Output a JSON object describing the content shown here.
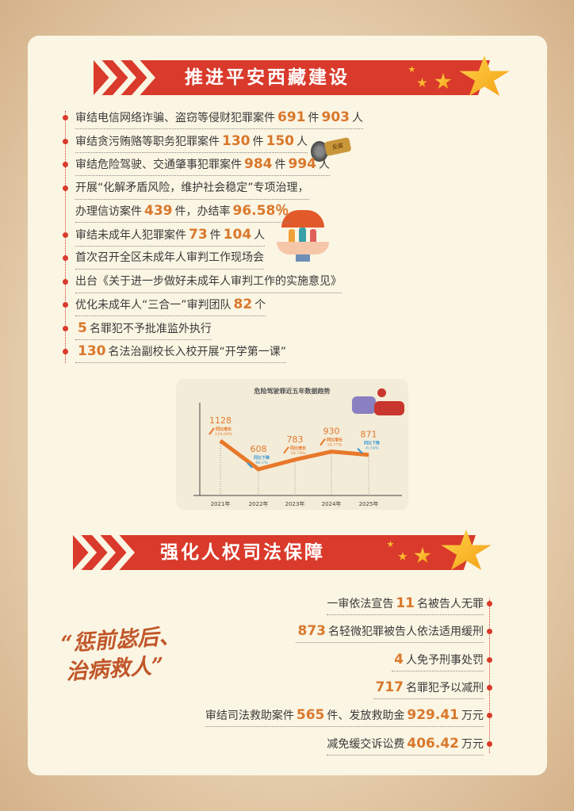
{
  "section1": {
    "title": "推进平安西藏建设",
    "items": [
      [
        {
          "t": "审结电信网络诈骗、盗窃等侵财犯罪案件"
        },
        {
          "t": "691",
          "hl": true
        },
        {
          "t": "件"
        },
        {
          "t": "903",
          "hl": true
        },
        {
          "t": "人"
        }
      ],
      [
        {
          "t": "审结贪污贿赂等职务犯罪案件"
        },
        {
          "t": "130",
          "hl": true
        },
        {
          "t": "件"
        },
        {
          "t": "150",
          "hl": true
        },
        {
          "t": "人"
        }
      ],
      [
        {
          "t": "审结危险驾驶、交通肇事犯罪案件"
        },
        {
          "t": "984",
          "hl": true
        },
        {
          "t": "件"
        },
        {
          "t": "994",
          "hl": true
        },
        {
          "t": "人"
        }
      ],
      [
        {
          "t": "开展“化解矛盾风险，维护社会稳定”专项治理，"
        }
      ],
      [
        {
          "t": "办理信访案件"
        },
        {
          "t": "439",
          "hl": true
        },
        {
          "t": "件，办结率"
        },
        {
          "t": "96.58％",
          "hl": true
        }
      ],
      [
        {
          "t": "审结未成年人犯罪案件"
        },
        {
          "t": "73",
          "hl": true
        },
        {
          "t": "件"
        },
        {
          "t": "104",
          "hl": true
        },
        {
          "t": "人"
        }
      ],
      [
        {
          "t": "首次召开全区未成年人审判工作现场会"
        }
      ],
      [
        {
          "t": "出台《关于进一步做好未成年人审判工作的实施意见》"
        }
      ],
      [
        {
          "t": "优化未成年人“三合一”审判团队"
        },
        {
          "t": "82",
          "hl": true
        },
        {
          "t": "个"
        }
      ],
      [
        {
          "t": "5",
          "hl": true
        },
        {
          "t": "名罪犯不予批准监外执行"
        }
      ],
      [
        {
          "t": "130",
          "hl": true
        },
        {
          "t": "名法治副校长入校开展“开学第一课”"
        }
      ]
    ],
    "badge_label": "反腐"
  },
  "chart_data": {
    "type": "line",
    "title": "危险驾驶罪近五年数据趋势",
    "categories": [
      "2021年",
      "2022年",
      "2023年",
      "2024年",
      "2025年"
    ],
    "values": [
      1128,
      608,
      783,
      930,
      871
    ],
    "annotations": [
      {
        "label": "同比增长",
        "change": "116.09%",
        "direction": "up"
      },
      {
        "label": "同比下降",
        "change": "46.1%",
        "direction": "down"
      },
      {
        "label": "同比增长",
        "change": "28.78%",
        "direction": "up"
      },
      {
        "label": "同比增长",
        "change": "18.77%",
        "direction": "up"
      },
      {
        "label": "同比下降",
        "change": "-6.34%",
        "direction": "down"
      }
    ],
    "colors": {
      "line": "#e8782a",
      "up": "#e8782a",
      "down": "#3a9ad9"
    }
  },
  "section2": {
    "title": "强化人权司法保障",
    "quote_line1": "“惩前毖后、",
    "quote_line2": "治病救人”",
    "items": [
      [
        {
          "t": "一审依法宣告"
        },
        {
          "t": "11",
          "hl": true
        },
        {
          "t": "名被告人无罪"
        }
      ],
      [
        {
          "t": "873",
          "hl": true
        },
        {
          "t": "名轻微犯罪被告人依法适用缓刑"
        }
      ],
      [
        {
          "t": "4",
          "hl": true
        },
        {
          "t": "人免予刑事处罚"
        }
      ],
      [
        {
          "t": "717",
          "hl": true
        },
        {
          "t": "名罪犯予以减刑"
        }
      ],
      [
        {
          "t": "审结司法救助案件"
        },
        {
          "t": "565",
          "hl": true
        },
        {
          "t": "件、发放救助金"
        },
        {
          "t": "929.41",
          "hl": true
        },
        {
          "t": "万元"
        }
      ],
      [
        {
          "t": "减免缓交诉讼费"
        },
        {
          "t": "406.42",
          "hl": true
        },
        {
          "t": "万元"
        }
      ]
    ]
  },
  "colors": {
    "accent": "#d93a2b",
    "highlight": "#d9782c",
    "card": "#fbf5e3"
  }
}
